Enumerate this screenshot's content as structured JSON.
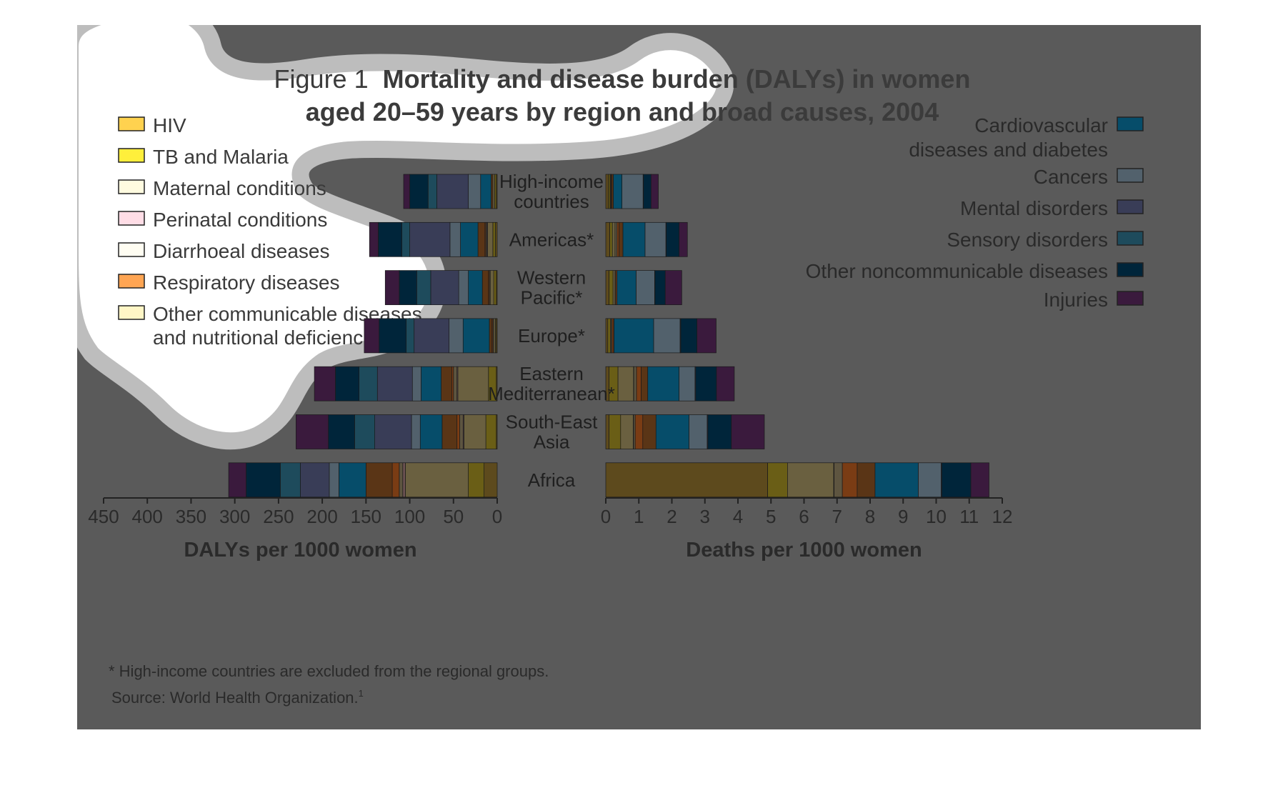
{
  "figure": {
    "title_prefix": "Figure 1",
    "title_line1": "Mortality and disease burden (DALYs) in women",
    "title_line2": "aged 20–59 years by region and broad causes, 2004",
    "footnote": "* High-income countries are excluded from the regional groups.",
    "source": "Source: World Health Organization.",
    "source_ref": "1"
  },
  "colors": {
    "panel_bg": "#5a5a5a",
    "blob_fill": "#ffffff",
    "blob_border": "#bdbdbd",
    "text_dark": "#2e2e2e",
    "axis_line": "#222222"
  },
  "chart_data": {
    "type": "bar",
    "orientation": "horizontal",
    "stacked": true,
    "categories": [
      "High-income countries",
      "Americas*",
      "Western Pacific*",
      "Europe*",
      "Eastern Mediterranean*",
      "South-East Asia",
      "Africa"
    ],
    "category_labels": [
      [
        "High-income",
        "countries"
      ],
      [
        "Americas*"
      ],
      [
        "Western",
        "Pacific*"
      ],
      [
        "Europe*"
      ],
      [
        "Eastern",
        "Mediterranean*"
      ],
      [
        "South-East",
        "Asia"
      ],
      [
        "Africa"
      ]
    ],
    "legend_left": [
      {
        "name": "HIV",
        "lines": [
          "HIV"
        ],
        "color": "#ffd24f",
        "dim": "#5d4a1d"
      },
      {
        "name": "TB and Malaria",
        "lines": [
          "TB and Malaria"
        ],
        "color": "#ffef3b",
        "dim": "#6a5e16"
      },
      {
        "name": "Maternal conditions",
        "lines": [
          "Maternal conditions"
        ],
        "color": "#fffbe0",
        "dim": "#6a6040"
      },
      {
        "name": "Perinatal conditions",
        "lines": [
          "Perinatal conditions"
        ],
        "color": "#ffdde6",
        "dim": "#6b5252"
      },
      {
        "name": "Diarrhoeal diseases",
        "lines": [
          "Diarrhoeal diseases"
        ],
        "color": "#fffdf2",
        "dim": "#5e5540"
      },
      {
        "name": "Respiratory diseases",
        "lines": [
          "Respiratory diseases"
        ],
        "color": "#ffa553",
        "dim": "#7a3c14"
      },
      {
        "name": "Other communicable diseases and nutritional deficiencies",
        "lines": [
          "Other communicable diseases",
          "and nutritional deficiencies"
        ],
        "color": "#fff6c6",
        "dim": "#5a3516"
      }
    ],
    "legend_right": [
      {
        "name": "Cardiovascular diseases and diabetes",
        "lines": [
          "Cardiovascular",
          "diseases and diabetes"
        ],
        "color": "#064d6a",
        "dim": "#064d6a"
      },
      {
        "name": "Cancers",
        "lines": [
          "Cancers"
        ],
        "color": "#52616c",
        "dim": "#52616c"
      },
      {
        "name": "Mental disorders",
        "lines": [
          "Mental disorders"
        ],
        "color": "#393d57",
        "dim": "#393d57"
      },
      {
        "name": "Sensory disorders",
        "lines": [
          "Sensory disorders"
        ],
        "color": "#1e4b5c",
        "dim": "#1e4b5c"
      },
      {
        "name": "Other noncommunicable diseases",
        "lines": [
          "Other noncommunicable diseases"
        ],
        "color": "#00253a",
        "dim": "#00253a"
      },
      {
        "name": "Injuries",
        "lines": [
          "Injuries"
        ],
        "color": "#3a1a3d",
        "dim": "#3a1a3d"
      }
    ],
    "charts": [
      {
        "id": "dalys",
        "xlabel": "DALYs per 1000 women",
        "xlim": [
          0,
          450
        ],
        "xticks": [
          450,
          400,
          350,
          300,
          250,
          200,
          150,
          100,
          50,
          0
        ],
        "direction": "reversed",
        "series": [
          {
            "name": "HIV",
            "values": [
              1,
              2,
              1,
              1,
              1,
              1,
              15
            ]
          },
          {
            "name": "TB and Malaria",
            "values": [
              2,
              3,
              3,
              1,
              9,
              12,
              18
            ]
          },
          {
            "name": "Maternal conditions",
            "values": [
              2,
              6,
              4,
              2,
              35,
              25,
              72
            ]
          },
          {
            "name": "Perinatal conditions",
            "values": [
              0,
              1,
              0,
              0,
              1,
              1,
              3
            ]
          },
          {
            "name": "Diarrhoeal diseases",
            "values": [
              0,
              1,
              1,
              1,
              4,
              4,
              4
            ]
          },
          {
            "name": "Respiratory diseases",
            "values": [
              0,
              1,
              1,
              1,
              2,
              3,
              8
            ]
          },
          {
            "name": "Other communicable diseases and nutritional deficiencies",
            "values": [
              2,
              8,
              7,
              3,
              12,
              17,
              30
            ]
          },
          {
            "name": "Cardiovascular diseases and diabetes",
            "values": [
              12,
              20,
              16,
              30,
              23,
              25,
              31
            ]
          },
          {
            "name": "Cancers",
            "values": [
              14,
              12,
              11,
              16,
              10,
              10,
              11
            ]
          },
          {
            "name": "Mental disorders",
            "values": [
              36,
              46,
              32,
              40,
              40,
              42,
              33
            ]
          },
          {
            "name": "Sensory disorders",
            "values": [
              10,
              9,
              16,
              9,
              21,
              23,
              23
            ]
          },
          {
            "name": "Other noncommunicable diseases",
            "values": [
              21,
              27,
              20,
              31,
              27,
              30,
              39
            ]
          },
          {
            "name": "Injuries",
            "values": [
              7,
              10,
              16,
              17,
              24,
              37,
              20
            ]
          }
        ]
      },
      {
        "id": "deaths",
        "xlabel": "Deaths per 1000 women",
        "xlim": [
          0,
          12
        ],
        "xticks": [
          0,
          1,
          2,
          3,
          4,
          5,
          6,
          7,
          8,
          9,
          10,
          11,
          12
        ],
        "direction": "normal",
        "series": [
          {
            "name": "HIV",
            "values": [
              0.08,
              0.12,
              0.1,
              0.06,
              0.1,
              0.1,
              4.9
            ]
          },
          {
            "name": "TB and Malaria",
            "values": [
              0.05,
              0.08,
              0.12,
              0.08,
              0.27,
              0.35,
              0.6
            ]
          },
          {
            "name": "Maternal conditions",
            "values": [
              0.02,
              0.08,
              0.06,
              0.03,
              0.47,
              0.38,
              1.4
            ]
          },
          {
            "name": "Perinatal conditions",
            "values": [
              0,
              0,
              0,
              0,
              0.01,
              0.01,
              0.01
            ]
          },
          {
            "name": "Diarrhoeal diseases",
            "values": [
              0.01,
              0.06,
              0.02,
              0.02,
              0.08,
              0.05,
              0.25
            ]
          },
          {
            "name": "Respiratory diseases",
            "values": [
              0.02,
              0.06,
              0.04,
              0.05,
              0.14,
              0.23,
              0.45
            ]
          },
          {
            "name": "Other communicable diseases and nutritional deficiencies",
            "values": [
              0.05,
              0.12,
              0.0,
              0.01,
              0.2,
              0.4,
              0.54
            ]
          },
          {
            "name": "Cardiovascular diseases and diabetes",
            "values": [
              0.26,
              0.67,
              0.58,
              1.2,
              0.95,
              1.0,
              1.31
            ]
          },
          {
            "name": "Cancers",
            "values": [
              0.64,
              0.63,
              0.56,
              0.8,
              0.48,
              0.55,
              0.69
            ]
          },
          {
            "name": "Mental disorders",
            "values": [
              0.01,
              0.01,
              0.01,
              0.02,
              0.02,
              0.02,
              0.02
            ]
          },
          {
            "name": "Sensory disorders",
            "values": [
              0,
              0,
              0,
              0,
              0,
              0,
              0
            ]
          },
          {
            "name": "Other noncommunicable diseases",
            "values": [
              0.23,
              0.39,
              0.31,
              0.49,
              0.63,
              0.71,
              0.88
            ]
          },
          {
            "name": "Injuries",
            "values": [
              0.22,
              0.25,
              0.5,
              0.58,
              0.54,
              1.0,
              0.55
            ]
          }
        ]
      }
    ]
  }
}
